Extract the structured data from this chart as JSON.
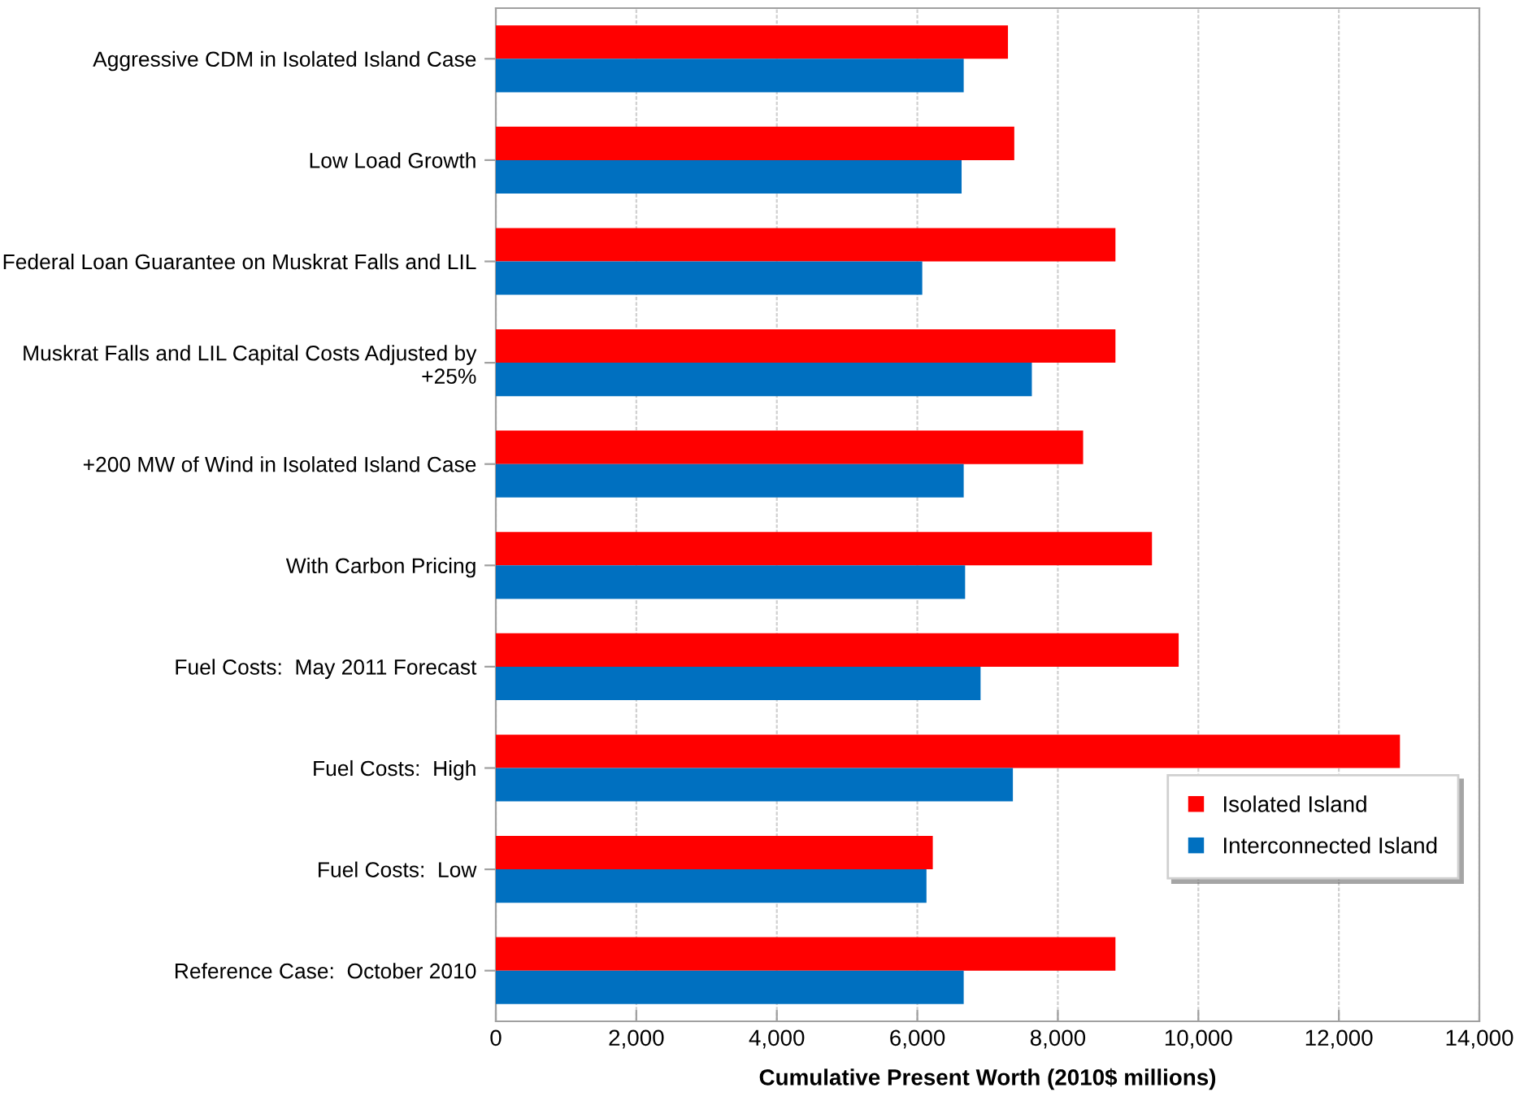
{
  "chart_data": {
    "type": "bar",
    "orientation": "horizontal",
    "xlabel": "Cumulative Present Worth (2010$ millions)",
    "categories": [
      "Aggressive CDM in Isolated Island Case",
      "Low Load Growth",
      "Federal Loan Guarantee on Muskrat Falls and LIL",
      "Muskrat Falls and LIL Capital Costs Adjusted by +25%",
      "+200 MW of Wind in Isolated Island Case",
      "With Carbon Pricing",
      "Fuel Costs:  May 2011 Forecast",
      "Fuel Costs:  High",
      "Fuel Costs:  Low",
      "Reference Case:  October 2010"
    ],
    "series": [
      {
        "name": "Isolated Island",
        "color": "#ff0000",
        "values": [
          7290,
          7380,
          8820,
          8820,
          8360,
          9340,
          9720,
          12870,
          6220,
          8820
        ]
      },
      {
        "name": "Interconnected Island",
        "color": "#0070c0",
        "values": [
          6660,
          6630,
          6070,
          7630,
          6660,
          6680,
          6900,
          7360,
          6130,
          6660
        ]
      }
    ],
    "xlim": [
      0,
      14000
    ],
    "xticks": [
      {
        "value": 0,
        "label": "0"
      },
      {
        "value": 2000,
        "label": "2,000"
      },
      {
        "value": 4000,
        "label": "4,000"
      },
      {
        "value": 6000,
        "label": "6,000"
      },
      {
        "value": 8000,
        "label": "8,000"
      },
      {
        "value": 10000,
        "label": "10,000"
      },
      {
        "value": 12000,
        "label": "12,000"
      },
      {
        "value": 14000,
        "label": "14,000"
      }
    ],
    "grid": "x",
    "legend": "bottom right"
  }
}
